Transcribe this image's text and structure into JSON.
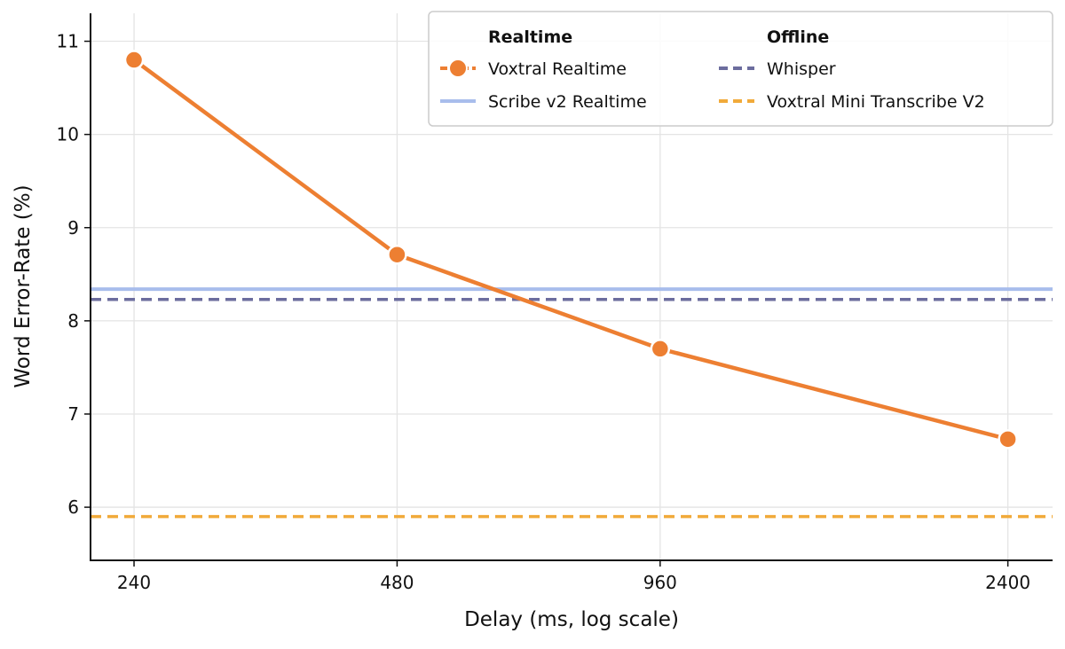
{
  "chart_data": {
    "type": "line",
    "title": "",
    "xlabel": "Delay (ms, log scale)",
    "ylabel": "Word Error-Rate (%)",
    "x_scale": "log",
    "xlim": [
      214,
      2700
    ],
    "ylim": [
      5.43,
      11.3
    ],
    "x_ticks": [
      240,
      480,
      960,
      2400
    ],
    "y_ticks": [
      6,
      7,
      8,
      9,
      10,
      11
    ],
    "grid": true,
    "legend_position": "top-right",
    "legend_groups": [
      "Realtime",
      "Offline"
    ],
    "series": [
      {
        "name": "Voxtral Realtime",
        "group": "Realtime",
        "kind": "line-markers",
        "color": "#ed7f32",
        "x": [
          240,
          480,
          960,
          2400
        ],
        "values": [
          10.8,
          8.71,
          7.7,
          6.73
        ]
      },
      {
        "name": "Scribe v2 Realtime",
        "group": "Realtime",
        "kind": "hline-solid",
        "color": "#a8bdec",
        "value": 8.34
      },
      {
        "name": "Whisper",
        "group": "Offline",
        "kind": "hline-dashed",
        "color": "#6c6d9e",
        "value": 8.23
      },
      {
        "name": "Voxtral Mini Transcribe V2",
        "group": "Offline",
        "kind": "hline-dashed",
        "color": "#f1aa3a",
        "value": 5.9
      }
    ]
  }
}
